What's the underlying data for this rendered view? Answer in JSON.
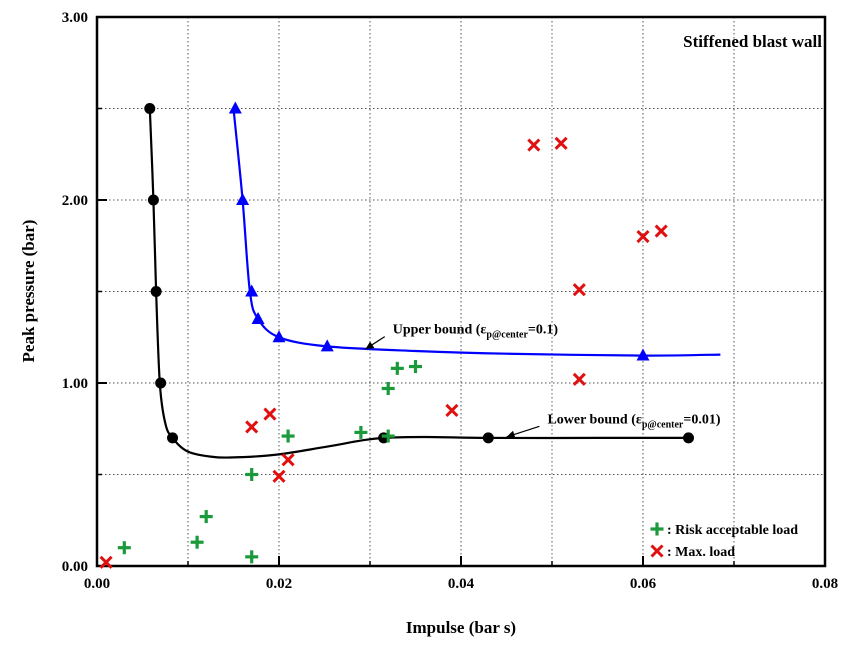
{
  "chart_data": {
    "type": "scatter",
    "title": "Stiffened blast wall",
    "xlabel": "Impulse (bar s)",
    "ylabel": "Peak pressure (bar)",
    "xlim": [
      0,
      0.08
    ],
    "ylim": [
      0,
      3.0
    ],
    "grid": true,
    "legend_placement": "bottom-right",
    "x_ticks": [
      0.0,
      0.02,
      0.04,
      0.06,
      0.08
    ],
    "x_tick_labels": [
      "0.00",
      "0.02",
      "0.04",
      "0.06",
      "0.08"
    ],
    "y_ticks": [
      0.0,
      1.0,
      2.0,
      3.0
    ],
    "y_tick_labels": [
      "0.00",
      "1.00",
      "2.00",
      "3.00"
    ],
    "series": [
      {
        "name": "Lower bound",
        "label_main": "Lower bound (",
        "label_symbol": "ε",
        "label_sub": "p@center",
        "label_tail": "=0.01)",
        "marker": "circle",
        "color": "#000000",
        "points": [
          [
            0.0058,
            2.5
          ],
          [
            0.0062,
            2.0
          ],
          [
            0.0065,
            1.5
          ],
          [
            0.007,
            1.0
          ],
          [
            0.0083,
            0.7
          ],
          [
            0.0315,
            0.7
          ],
          [
            0.043,
            0.7
          ],
          [
            0.065,
            0.7
          ]
        ],
        "curve": [
          [
            0.0058,
            2.5
          ],
          [
            0.0062,
            2.0
          ],
          [
            0.0065,
            1.5
          ],
          [
            0.0069,
            1.0
          ],
          [
            0.0075,
            0.78
          ],
          [
            0.0083,
            0.7
          ],
          [
            0.01,
            0.625
          ],
          [
            0.013,
            0.595
          ],
          [
            0.016,
            0.595
          ],
          [
            0.02,
            0.61
          ],
          [
            0.025,
            0.65
          ],
          [
            0.029,
            0.685
          ],
          [
            0.0315,
            0.7
          ],
          [
            0.036,
            0.705
          ],
          [
            0.043,
            0.7
          ],
          [
            0.055,
            0.7
          ],
          [
            0.065,
            0.7
          ]
        ]
      },
      {
        "name": "Upper bound",
        "label_main": "Upper bound (",
        "label_symbol": "ε",
        "label_sub": "p@center",
        "label_tail": "=0.1)",
        "marker": "triangle",
        "color": "#0000ff",
        "points": [
          [
            0.0152,
            2.5
          ],
          [
            0.016,
            2.0
          ],
          [
            0.017,
            1.5
          ],
          [
            0.0177,
            1.35
          ],
          [
            0.02,
            1.25
          ],
          [
            0.0253,
            1.2
          ],
          [
            0.06,
            1.15
          ]
        ],
        "curve": [
          [
            0.015,
            2.5
          ],
          [
            0.016,
            2.0
          ],
          [
            0.0168,
            1.5
          ],
          [
            0.0177,
            1.35
          ],
          [
            0.02,
            1.25
          ],
          [
            0.0253,
            1.2
          ],
          [
            0.035,
            1.175
          ],
          [
            0.045,
            1.16
          ],
          [
            0.06,
            1.15
          ],
          [
            0.0685,
            1.155
          ]
        ]
      },
      {
        "name": ": Risk acceptable load",
        "marker": "plus",
        "color": "#1a9a3a",
        "points": [
          [
            0.003,
            0.1
          ],
          [
            0.011,
            0.13
          ],
          [
            0.012,
            0.27
          ],
          [
            0.017,
            0.05
          ],
          [
            0.017,
            0.5
          ],
          [
            0.021,
            0.71
          ],
          [
            0.029,
            0.73
          ],
          [
            0.032,
            0.71
          ],
          [
            0.032,
            0.97
          ],
          [
            0.033,
            1.08
          ],
          [
            0.035,
            1.09
          ]
        ]
      },
      {
        "name": ": Max. load",
        "marker": "cross",
        "color": "#e01010",
        "points": [
          [
            0.001,
            0.02
          ],
          [
            0.017,
            0.76
          ],
          [
            0.019,
            0.83
          ],
          [
            0.02,
            0.49
          ],
          [
            0.021,
            0.58
          ],
          [
            0.039,
            0.85
          ],
          [
            0.048,
            2.3
          ],
          [
            0.051,
            2.31
          ],
          [
            0.053,
            1.51
          ],
          [
            0.053,
            1.02
          ],
          [
            0.06,
            1.8
          ],
          [
            0.062,
            1.83
          ]
        ]
      }
    ],
    "annotations": [
      {
        "target": "Upper bound",
        "text_at": [
          0.0325,
          1.27
        ],
        "arrow_to": [
          0.0295,
          1.185
        ]
      },
      {
        "target": "Lower bound",
        "text_at": [
          0.0495,
          0.78
        ],
        "arrow_to": [
          0.045,
          0.705
        ]
      }
    ]
  }
}
